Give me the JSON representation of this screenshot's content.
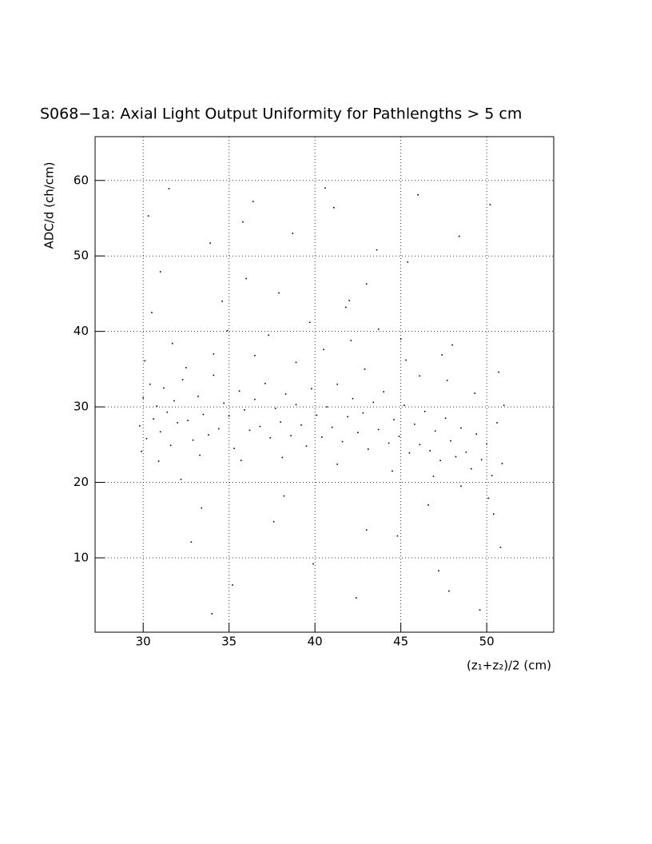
{
  "chart_data": {
    "type": "scatter",
    "title": "S068−1a: Axial Light Output Uniformity for Pathlengths > 5 cm",
    "x_label": "(z₁+z₂)/2 (cm)",
    "y_label": "ADC/d (ch/cm)",
    "color": "#000000",
    "grid": true,
    "xlim": [
      27.2,
      53.9
    ],
    "ylim": [
      0.15,
      65.8
    ],
    "xticks": [
      30,
      35,
      40,
      45,
      50
    ],
    "yticks": [
      10,
      20,
      30,
      40,
      50,
      60
    ],
    "x": [
      29.8,
      30.0,
      30.2,
      30.4,
      30.6,
      30.8,
      31.0,
      31.2,
      31.4,
      31.6,
      31.8,
      32.0,
      32.3,
      32.6,
      32.9,
      33.2,
      33.5,
      33.8,
      34.1,
      34.4,
      34.7,
      35.0,
      35.3,
      35.6,
      35.9,
      36.2,
      36.5,
      36.8,
      37.1,
      37.4,
      37.7,
      38.0,
      38.3,
      38.6,
      38.9,
      39.2,
      39.5,
      39.8,
      40.1,
      40.4,
      40.7,
      41.0,
      41.3,
      41.6,
      41.9,
      42.2,
      42.5,
      42.8,
      43.1,
      43.4,
      43.7,
      44.0,
      44.3,
      44.6,
      44.9,
      45.2,
      45.5,
      45.8,
      46.1,
      46.4,
      46.7,
      47.0,
      47.3,
      47.6,
      47.9,
      48.2,
      48.5,
      48.8,
      49.1,
      49.4,
      49.7,
      50.0,
      50.3,
      50.6,
      50.9,
      30.1,
      30.9,
      31.7,
      32.5,
      33.3,
      34.1,
      34.9,
      35.7,
      36.5,
      37.3,
      38.1,
      38.9,
      39.7,
      40.5,
      41.3,
      42.1,
      42.9,
      43.7,
      44.5,
      45.3,
      46.1,
      46.9,
      47.7,
      48.5,
      49.3,
      50.1,
      50.7,
      30.5,
      32.2,
      34.6,
      37.9,
      41.8,
      45.0,
      48.0,
      50.4,
      29.9,
      36.0,
      43.0,
      47.4,
      51.0,
      30.3,
      31.5,
      32.8,
      33.9,
      35.2,
      36.4,
      37.6,
      38.7,
      39.9,
      41.1,
      42.4,
      43.6,
      44.8,
      46.0,
      47.2,
      48.4,
      49.6,
      50.8,
      31.0,
      33.4,
      35.8,
      38.2,
      40.6,
      43.0,
      45.4,
      47.8,
      50.2,
      34.0,
      42.0,
      46.6
    ],
    "y": [
      27.5,
      31.2,
      25.8,
      33.0,
      28.4,
      30.1,
      26.7,
      32.5,
      29.3,
      24.9,
      30.8,
      27.9,
      33.6,
      28.2,
      25.6,
      31.4,
      29.0,
      26.3,
      34.2,
      27.1,
      30.5,
      28.8,
      24.5,
      32.1,
      29.6,
      26.9,
      31.0,
      27.4,
      33.1,
      25.9,
      29.8,
      28.0,
      31.7,
      26.2,
      30.3,
      27.6,
      24.8,
      32.4,
      28.9,
      26.0,
      30.0,
      27.3,
      33.0,
      25.4,
      28.7,
      31.1,
      26.6,
      29.2,
      24.4,
      30.6,
      27.0,
      32.0,
      25.2,
      28.3,
      26.1,
      30.2,
      23.9,
      27.7,
      25.0,
      29.4,
      24.2,
      26.8,
      22.9,
      28.5,
      25.5,
      23.4,
      27.2,
      24.0,
      21.8,
      26.4,
      23.0,
      25.1,
      20.9,
      27.9,
      22.5,
      36.1,
      22.8,
      38.4,
      35.2,
      23.6,
      37.0,
      40.1,
      22.9,
      36.8,
      39.5,
      23.3,
      35.9,
      41.2,
      37.6,
      22.4,
      38.8,
      35.0,
      40.3,
      21.5,
      36.2,
      34.1,
      20.8,
      33.5,
      19.5,
      31.8,
      17.9,
      34.6,
      42.5,
      20.4,
      44.0,
      45.1,
      43.2,
      39.0,
      38.2,
      15.8,
      24.1,
      47.0,
      46.3,
      36.9,
      30.2,
      55.3,
      58.9,
      12.1,
      51.7,
      6.4,
      57.2,
      14.8,
      53.0,
      9.2,
      56.4,
      4.7,
      50.8,
      12.9,
      58.1,
      8.3,
      52.6,
      3.1,
      11.4,
      47.9,
      16.6,
      54.5,
      18.2,
      59.0,
      13.7,
      49.2,
      5.6,
      56.8,
      2.6,
      44.1,
      17.0
    ]
  }
}
